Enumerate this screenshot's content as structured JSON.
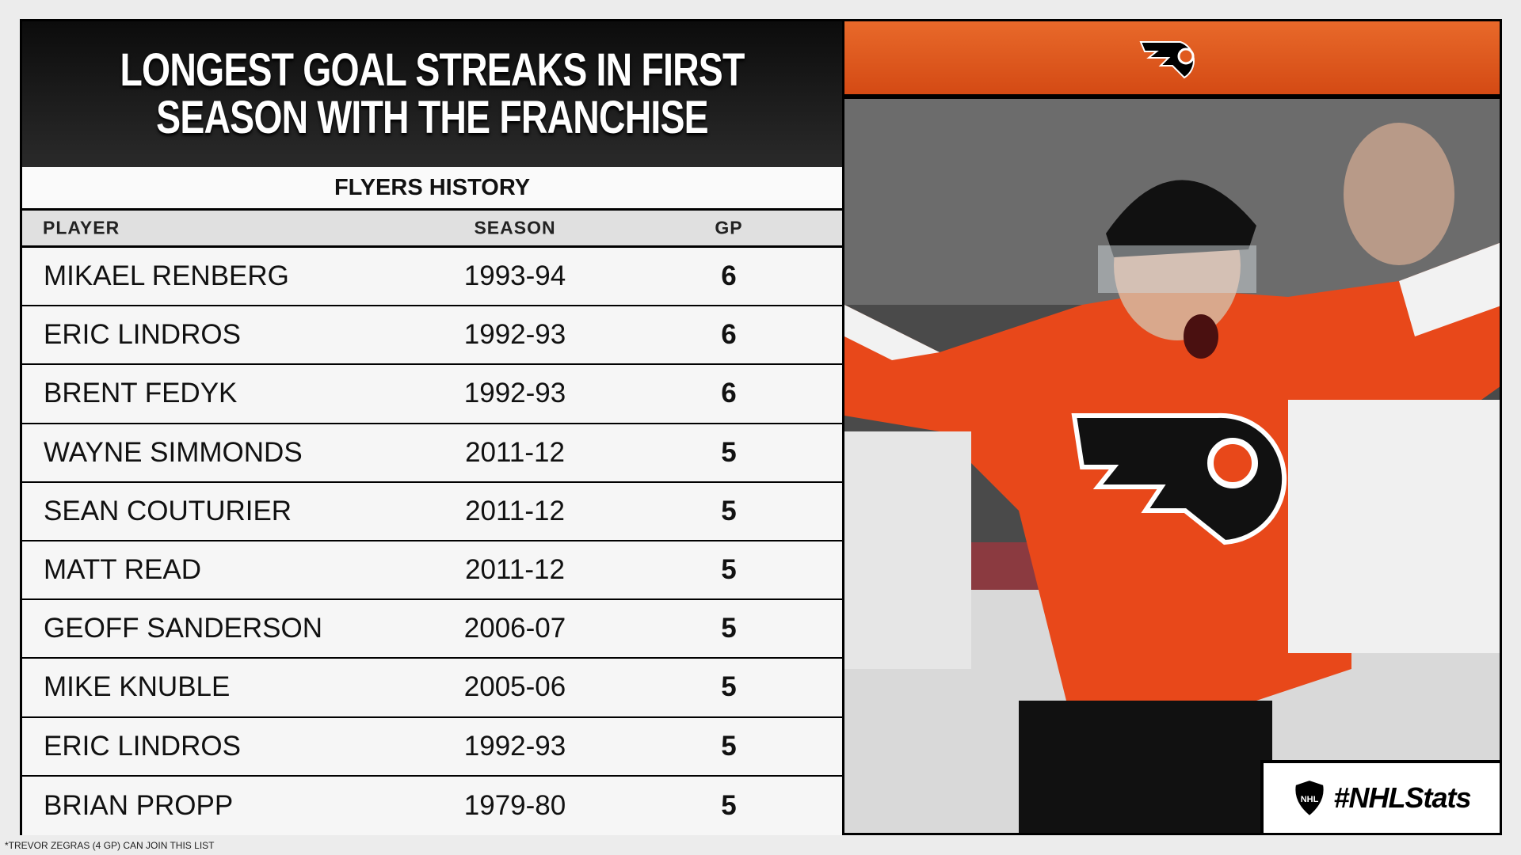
{
  "title": "LONGEST GOAL STREAKS IN FIRST SEASON WITH THE FRANCHISE",
  "subtitle": "FLYERS HISTORY",
  "columns": [
    "PLAYER",
    "SEASON",
    "GP"
  ],
  "rows": [
    {
      "player": "MIKAEL RENBERG",
      "season": "1993-94",
      "gp": "6"
    },
    {
      "player": "ERIC LINDROS",
      "season": "1992-93",
      "gp": "6"
    },
    {
      "player": "BRENT FEDYK",
      "season": "1992-93",
      "gp": "6"
    },
    {
      "player": "WAYNE SIMMONDS",
      "season": "2011-12",
      "gp": "5"
    },
    {
      "player": "SEAN COUTURIER",
      "season": "2011-12",
      "gp": "5"
    },
    {
      "player": "MATT READ",
      "season": "2011-12",
      "gp": "5"
    },
    {
      "player": "GEOFF SANDERSON",
      "season": "2006-07",
      "gp": "5"
    },
    {
      "player": "MIKE KNUBLE",
      "season": "2005-06",
      "gp": "5"
    },
    {
      "player": "ERIC LINDROS",
      "season": "1992-93",
      "gp": "5"
    },
    {
      "player": "BRIAN PROPP",
      "season": "1979-80",
      "gp": "5"
    }
  ],
  "footnote": "*TREVOR ZEGRAS (4 GP) CAN JOIN THIS LIST",
  "hashtag": "#NHLStats",
  "colors": {
    "orange": "#e05a1e",
    "black": "#000000"
  }
}
